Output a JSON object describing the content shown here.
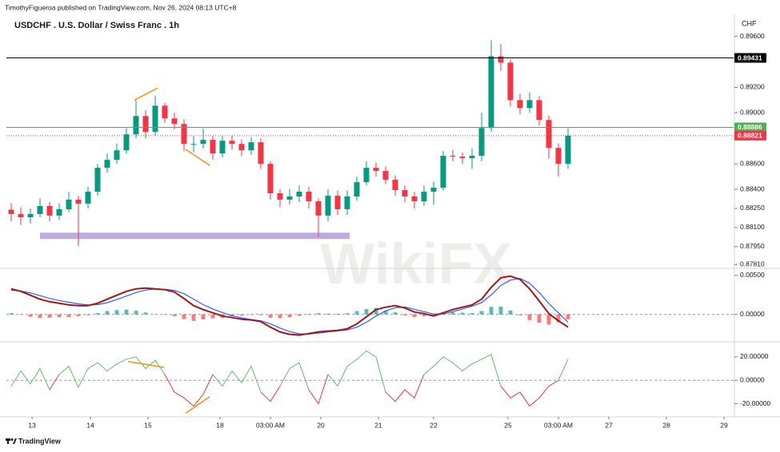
{
  "header": {
    "byline": "TimothyFigueroa published on TradingView.com, Nov 26, 2024 08:13 UTC+8"
  },
  "watermark": "WikiFX",
  "footer": {
    "brand": "TradingView"
  },
  "chart_data": [
    {
      "type": "candlestick",
      "title": "USDCHF . U.S. Dollar / Swiss Franc . 1h",
      "scale_unit": "CHF",
      "up_color": "#089981",
      "down_color": "#f23645",
      "xlim": [
        0,
        303
      ],
      "ylim": [
        0.8778,
        0.8976
      ],
      "yticks": [
        {
          "value": 0.896,
          "label": "0.89600"
        },
        {
          "value": 0.892,
          "label": "0.89200"
        },
        {
          "value": 0.89,
          "label": "0.89000"
        },
        {
          "value": 0.886,
          "label": "0.88600"
        },
        {
          "value": 0.884,
          "label": "0.88400"
        },
        {
          "value": 0.8825,
          "label": "0.88250"
        },
        {
          "value": 0.881,
          "label": "0.88100"
        },
        {
          "value": 0.8795,
          "label": "0.87950"
        },
        {
          "value": 0.8781,
          "label": "0.87810"
        }
      ],
      "x": [
        2,
        6,
        10,
        14,
        18,
        22,
        26,
        30,
        34,
        38,
        42,
        46,
        50,
        54,
        58,
        62,
        66,
        70,
        74,
        78,
        82,
        86,
        90,
        94,
        98,
        102,
        106,
        110,
        114,
        118,
        122,
        126,
        130,
        134,
        138,
        142,
        146,
        150,
        154,
        158,
        162,
        166,
        170,
        174,
        178,
        182,
        186,
        190,
        194,
        198,
        202,
        206,
        210,
        214,
        218,
        222,
        226,
        230,
        234
      ],
      "open": [
        0.8824,
        0.88206,
        0.88181,
        0.88206,
        0.88269,
        0.88194,
        0.88244,
        0.88319,
        0.88288,
        0.88381,
        0.88569,
        0.88631,
        0.88706,
        0.88831,
        0.88975,
        0.8885,
        0.89056,
        0.88956,
        0.88913,
        0.88756,
        0.88756,
        0.88788,
        0.88681,
        0.88781,
        0.88756,
        0.88706,
        0.88769,
        0.886,
        0.88369,
        0.88319,
        0.88344,
        0.88381,
        0.88306,
        0.88194,
        0.8835,
        0.88244,
        0.88344,
        0.88456,
        0.88569,
        0.88544,
        0.88475,
        0.88394,
        0.88344,
        0.88306,
        0.88381,
        0.88413,
        0.88663,
        0.88656,
        0.88644,
        0.88663,
        0.88881,
        0.89444,
        0.89394,
        0.891,
        0.89038,
        0.891,
        0.88944,
        0.88725,
        0.886
      ],
      "high": [
        0.8829,
        0.8826,
        0.8825,
        0.8833,
        0.883,
        0.8829,
        0.8838,
        0.8835,
        0.8842,
        0.886,
        0.8868,
        0.8876,
        0.8888,
        0.891,
        0.8902,
        0.89131,
        0.8908,
        0.89,
        0.8895,
        0.8882,
        0.88875,
        0.8882,
        0.8882,
        0.8882,
        0.8879,
        0.8881,
        0.888,
        0.8862,
        0.884,
        0.884,
        0.8843,
        0.8842,
        0.8833,
        0.884,
        0.8839,
        0.8839,
        0.885,
        0.8862,
        0.8861,
        0.8858,
        0.8851,
        0.8843,
        0.8838,
        0.8843,
        0.8846,
        0.887,
        0.8871,
        0.8869,
        0.8872,
        0.89,
        0.89569,
        0.8954,
        0.8942,
        0.8915,
        0.8916,
        0.8913,
        0.8898,
        0.8876,
        0.8888
      ],
      "low": [
        0.8815,
        0.8812,
        0.8813,
        0.8818,
        0.8815,
        0.8816,
        0.8822,
        0.87956,
        0.8825,
        0.8835,
        0.8853,
        0.886,
        0.8868,
        0.888,
        0.888,
        0.8882,
        0.8892,
        0.8887,
        0.887,
        0.8869,
        0.8872,
        0.8863,
        0.8865,
        0.8871,
        0.8866,
        0.8867,
        0.8856,
        0.8832,
        0.8826,
        0.8828,
        0.883,
        0.8825,
        0.88025,
        0.8815,
        0.882,
        0.882,
        0.8831,
        0.8843,
        0.885,
        0.8844,
        0.8835,
        0.883,
        0.8825,
        0.8827,
        0.8828,
        0.8839,
        0.8862,
        0.886,
        0.8856,
        0.8862,
        0.8885,
        0.8933,
        0.8905,
        0.8899,
        0.89,
        0.889,
        0.8864,
        0.885,
        0.8856
      ],
      "close": [
        0.88206,
        0.88181,
        0.88206,
        0.88269,
        0.88194,
        0.88244,
        0.88319,
        0.88288,
        0.88381,
        0.88569,
        0.88631,
        0.88706,
        0.88831,
        0.88975,
        0.8885,
        0.89056,
        0.88956,
        0.88913,
        0.88756,
        0.88756,
        0.88788,
        0.88681,
        0.88781,
        0.88756,
        0.88706,
        0.88769,
        0.886,
        0.88369,
        0.88319,
        0.88344,
        0.88381,
        0.88306,
        0.88194,
        0.8835,
        0.88244,
        0.88344,
        0.88456,
        0.88569,
        0.88544,
        0.88475,
        0.88394,
        0.88344,
        0.88306,
        0.88381,
        0.88413,
        0.88663,
        0.88656,
        0.88644,
        0.88663,
        0.88881,
        0.89444,
        0.89394,
        0.891,
        0.89038,
        0.891,
        0.88944,
        0.88725,
        0.886,
        0.88821
      ],
      "price_lines": [
        {
          "value": 0.89431,
          "color": "#000000",
          "dotted": false
        },
        {
          "value": 0.88886,
          "color": "#4caf50",
          "dotted": false
        },
        {
          "value": 0.88821,
          "color": "#f23645",
          "dotted": true
        }
      ],
      "zones": [
        {
          "x": [
            14,
            143
          ],
          "y": [
            0.8801,
            0.8806
          ],
          "color": "#b39ddb"
        }
      ],
      "drawings": [
        {
          "x": [
            53.3,
            63
          ],
          "y": [
            0.891,
            0.89194
          ],
          "color": "#f7931a"
        },
        {
          "x": [
            74.7,
            84.7
          ],
          "y": [
            0.88713,
            0.88588
          ],
          "color": "#f7931a"
        }
      ]
    },
    {
      "type": "line",
      "xlim": [
        0,
        303
      ],
      "ylim": [
        -0.0032,
        0.0059
      ],
      "yticks": [
        {
          "value": 0.005,
          "label": "0.00500"
        },
        {
          "value": 0,
          "label": "0.00000"
        }
      ],
      "zero_line": true,
      "x": [
        2,
        6,
        10,
        14,
        18,
        22,
        26,
        30,
        34,
        38,
        42,
        46,
        50,
        54,
        58,
        62,
        66,
        70,
        74,
        78,
        82,
        86,
        90,
        94,
        98,
        102,
        106,
        110,
        114,
        118,
        122,
        126,
        130,
        134,
        138,
        142,
        146,
        150,
        154,
        158,
        162,
        166,
        170,
        174,
        178,
        182,
        186,
        190,
        194,
        198,
        202,
        206,
        210,
        214,
        218,
        222,
        226,
        230,
        234
      ],
      "series": [
        {
          "style": "histogram",
          "up_color": "#26a69a",
          "down_color": "#ef5350",
          "values": [
            0.00017,
            -4e-05,
            -0.0003,
            -0.00046,
            -0.00042,
            -0.00035,
            -0.00033,
            -0.00023,
            -0.0001,
            0.00018,
            0.00044,
            0.00055,
            0.00061,
            0.00047,
            0.00025,
            2e-05,
            -6e-05,
            -0.00022,
            -0.00061,
            -0.00083,
            -0.00064,
            -0.0005,
            -0.00045,
            -0.00026,
            -0.00016,
            -6e-05,
            -0.0001,
            -0.00043,
            -0.00049,
            -0.00035,
            -0.00017,
            7e-05,
            0.00016,
            0.00011,
            8e-05,
            0.00014,
            0.00043,
            0.00069,
            0.00081,
            0.00047,
            0.00027,
            -0.00013,
            -0.00034,
            -0.00025,
            -0.00025,
            0.00015,
            0.00026,
            0.00022,
            0.00017,
            0.00044,
            0.00097,
            0.00099,
            0.0005,
            -0.00011,
            -0.00073,
            -0.00107,
            -0.0013,
            -0.00102,
            -0.00063
          ]
        },
        {
          "style": "line",
          "color": "#2962ff",
          "width": 1.2,
          "values": [
            0.0031,
            0.003,
            0.00275,
            0.0024,
            0.00205,
            0.00178,
            0.00155,
            0.00135,
            0.00122,
            0.00125,
            0.0015,
            0.0019,
            0.00235,
            0.0028,
            0.00312,
            0.00325,
            0.00322,
            0.00308,
            0.00265,
            0.00195,
            0.00125,
            0.0007,
            0.00025,
            -0.00015,
            -0.00045,
            -0.00065,
            -0.00082,
            -0.0012,
            -0.00175,
            -0.0022,
            -0.00248,
            -0.00252,
            -0.0024,
            -0.00225,
            -0.00212,
            -0.00198,
            -0.00165,
            -0.001,
            -0.0002,
            0.00045,
            0.00085,
            0.00095,
            0.00065,
            0.00035,
            5e-05,
            5e-05,
            0.00035,
            0.0007,
            0.00105,
            0.0015,
            0.0025,
            0.0037,
            0.0044,
            0.0046,
            0.004,
            0.0028,
            0.0014,
            0.0002,
            -0.001
          ]
        },
        {
          "style": "line",
          "color": "#a31515",
          "width": 2,
          "values": [
            0.00327,
            0.00296,
            0.00245,
            0.00194,
            0.00163,
            0.00143,
            0.00122,
            0.00112,
            0.00112,
            0.00143,
            0.00194,
            0.00245,
            0.00296,
            0.00327,
            0.00337,
            0.00327,
            0.00316,
            0.00286,
            0.00204,
            0.00112,
            0.00061,
            0.0002,
            -0.0002,
            -0.00041,
            -0.00061,
            -0.00071,
            -0.00092,
            -0.00163,
            -0.00224,
            -0.00255,
            -0.00265,
            -0.00245,
            -0.00224,
            -0.00214,
            -0.00204,
            -0.00184,
            -0.00122,
            -0.00031,
            0.00061,
            0.00092,
            0.00112,
            0.00082,
            0.00031,
            0.0001,
            -0.0002,
            0.0002,
            0.00061,
            0.00092,
            0.00122,
            0.00194,
            0.00347,
            0.00469,
            0.0049,
            0.00449,
            0.00327,
            0.00173,
            0.0001,
            -0.00082,
            -0.00163
          ]
        }
      ]
    },
    {
      "type": "line",
      "xlim": [
        0,
        303
      ],
      "ylim": [
        -29.8,
        31.5
      ],
      "yticks": [
        {
          "value": 20,
          "label": "20.00000"
        },
        {
          "value": 0,
          "label": "0.00000"
        },
        {
          "value": -20,
          "label": "-20.00000"
        }
      ],
      "zero_line": true,
      "x": [
        2,
        6,
        10,
        14,
        18,
        22,
        26,
        30,
        34,
        38,
        42,
        46,
        50,
        54,
        58,
        62,
        66,
        70,
        74,
        78,
        82,
        86,
        90,
        94,
        98,
        102,
        106,
        110,
        114,
        118,
        122,
        126,
        130,
        134,
        138,
        142,
        146,
        150,
        154,
        158,
        162,
        166,
        170,
        174,
        178,
        182,
        186,
        190,
        194,
        198,
        202,
        206,
        210,
        214,
        218,
        222,
        226,
        230,
        234
      ],
      "series": [
        {
          "style": "line",
          "color": "#e53935",
          "up_color": "#66bb6a",
          "width": 1,
          "values": [
            -5,
            8,
            -3,
            10,
            -8,
            5,
            12,
            -6,
            10,
            15,
            8,
            14,
            18,
            20,
            10,
            17,
            5,
            -10,
            -15,
            -22,
            -12,
            5,
            -5,
            8,
            -2,
            12,
            -10,
            -18,
            -5,
            10,
            15,
            -8,
            -20,
            5,
            -5,
            12,
            18,
            25,
            20,
            -10,
            -18,
            -8,
            -15,
            5,
            12,
            20,
            15,
            8,
            14,
            18,
            22,
            -5,
            -15,
            -10,
            -22,
            -15,
            -5,
            0,
            18
          ]
        }
      ],
      "drawings": [
        {
          "x": [
            50.7,
            65.7
          ],
          "y": [
            16,
            11
          ],
          "color": "#f7931a"
        },
        {
          "x": [
            74.7,
            84.7
          ],
          "y": [
            -28,
            -14
          ],
          "color": "#f7931a"
        }
      ],
      "xticks": [
        {
          "value": 10.7,
          "label": "13"
        },
        {
          "value": 35,
          "label": "14"
        },
        {
          "value": 59,
          "label": "15"
        },
        {
          "value": 89,
          "label": "18"
        },
        {
          "value": 110,
          "label": "03:00 AM"
        },
        {
          "value": 131,
          "label": "20"
        },
        {
          "value": 155,
          "label": "21"
        },
        {
          "value": 178,
          "label": "22"
        },
        {
          "value": 209,
          "label": "25"
        },
        {
          "value": 230,
          "label": "03:00 AM"
        },
        {
          "value": 251,
          "label": "27"
        },
        {
          "value": 275,
          "label": "28"
        },
        {
          "value": 299,
          "label": "29"
        }
      ]
    }
  ]
}
